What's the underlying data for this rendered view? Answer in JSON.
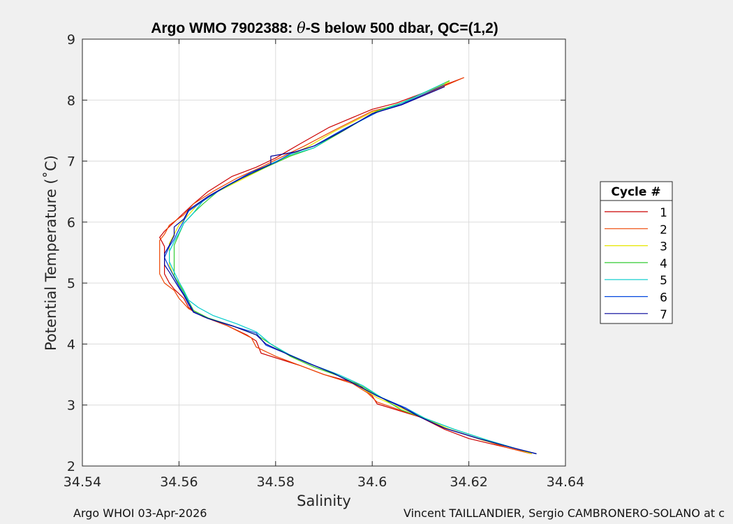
{
  "footer": {
    "left": "Argo WHOI 03-Apr-2026",
    "right": "Vincent TAILLANDIER, Sergio CAMBRONERO-SOLANO at c"
  },
  "colors": {
    "background": "#f0f0f0",
    "axes_bg": "#ffffff",
    "grid": "#dcdcdc"
  },
  "chart_data": {
    "type": "line",
    "title_prefix": "Argo WMO 7902388: ",
    "title_theta": "θ",
    "title_suffix": "-S below 500 dbar,  QC=(1,2)",
    "xlabel": "Salinity",
    "ylabel": "Potential Temperature (˚C)",
    "xlim": [
      34.54,
      34.64
    ],
    "ylim": [
      2,
      9
    ],
    "xticks": [
      34.54,
      34.56,
      34.58,
      34.6,
      34.62,
      34.64
    ],
    "xtick_labels": [
      "34.54",
      "34.56",
      "34.58",
      "34.6",
      "34.62",
      "34.64"
    ],
    "yticks": [
      2,
      3,
      4,
      5,
      6,
      7,
      8,
      9
    ],
    "ytick_labels": [
      "2",
      "3",
      "4",
      "5",
      "6",
      "7",
      "8",
      "9"
    ],
    "grid": true,
    "legend": {
      "title": "Cycle #",
      "placement": "outside-right"
    },
    "series": [
      {
        "name": "1",
        "color": "#cc0000",
        "points": [
          [
            34.619,
            8.37
          ],
          [
            34.605,
            7.95
          ],
          [
            34.6,
            7.85
          ],
          [
            34.591,
            7.55
          ],
          [
            34.585,
            7.28
          ],
          [
            34.58,
            7.05
          ],
          [
            34.576,
            6.9
          ],
          [
            34.571,
            6.75
          ],
          [
            34.566,
            6.5
          ],
          [
            34.563,
            6.3
          ],
          [
            34.561,
            6.15
          ],
          [
            34.559,
            6.0
          ],
          [
            34.557,
            5.85
          ],
          [
            34.556,
            5.75
          ],
          [
            34.557,
            5.6
          ],
          [
            34.557,
            5.35
          ],
          [
            34.557,
            5.15
          ],
          [
            34.558,
            5.0
          ],
          [
            34.559,
            4.9
          ],
          [
            34.561,
            4.75
          ],
          [
            34.562,
            4.6
          ],
          [
            34.565,
            4.45
          ],
          [
            34.57,
            4.3
          ],
          [
            34.574,
            4.15
          ],
          [
            34.576,
            4.05
          ],
          [
            34.577,
            3.85
          ],
          [
            34.585,
            3.65
          ],
          [
            34.59,
            3.5
          ],
          [
            34.597,
            3.35
          ],
          [
            34.6,
            3.15
          ],
          [
            34.601,
            3.02
          ],
          [
            34.61,
            2.8
          ],
          [
            34.615,
            2.6
          ],
          [
            34.62,
            2.45
          ],
          [
            34.628,
            2.3
          ],
          [
            34.633,
            2.2
          ]
        ]
      },
      {
        "name": "2",
        "color": "#ee4400",
        "points": [
          [
            34.619,
            8.37
          ],
          [
            34.606,
            7.93
          ],
          [
            34.6,
            7.82
          ],
          [
            34.592,
            7.5
          ],
          [
            34.586,
            7.25
          ],
          [
            34.58,
            7.02
          ],
          [
            34.577,
            6.9
          ],
          [
            34.572,
            6.72
          ],
          [
            34.567,
            6.5
          ],
          [
            34.563,
            6.3
          ],
          [
            34.561,
            6.12
          ],
          [
            34.558,
            5.95
          ],
          [
            34.557,
            5.8
          ],
          [
            34.556,
            5.7
          ],
          [
            34.556,
            5.55
          ],
          [
            34.556,
            5.3
          ],
          [
            34.556,
            5.15
          ],
          [
            34.557,
            5.0
          ],
          [
            34.559,
            4.88
          ],
          [
            34.56,
            4.75
          ],
          [
            34.562,
            4.58
          ],
          [
            34.565,
            4.45
          ],
          [
            34.57,
            4.3
          ],
          [
            34.575,
            4.1
          ],
          [
            34.576,
            3.95
          ],
          [
            34.58,
            3.8
          ],
          [
            34.586,
            3.62
          ],
          [
            34.59,
            3.5
          ],
          [
            34.596,
            3.35
          ],
          [
            34.599,
            3.2
          ],
          [
            34.601,
            3.05
          ],
          [
            34.61,
            2.8
          ],
          [
            34.616,
            2.6
          ],
          [
            34.622,
            2.45
          ],
          [
            34.628,
            2.3
          ],
          [
            34.633,
            2.2
          ]
        ]
      },
      {
        "name": "3",
        "color": "#e6e600",
        "points": [
          [
            34.616,
            8.3
          ],
          [
            34.605,
            7.92
          ],
          [
            34.6,
            7.8
          ],
          [
            34.592,
            7.48
          ],
          [
            34.587,
            7.25
          ],
          [
            34.582,
            7.05
          ],
          [
            34.578,
            6.9
          ],
          [
            34.573,
            6.7
          ],
          [
            34.568,
            6.5
          ],
          [
            34.564,
            6.3
          ],
          [
            34.562,
            6.12
          ],
          [
            34.56,
            5.95
          ],
          [
            34.559,
            5.8
          ],
          [
            34.558,
            5.65
          ],
          [
            34.558,
            5.5
          ],
          [
            34.558,
            5.3
          ],
          [
            34.559,
            5.1
          ],
          [
            34.56,
            5.0
          ],
          [
            34.561,
            4.85
          ],
          [
            34.562,
            4.7
          ],
          [
            34.563,
            4.55
          ],
          [
            34.566,
            4.42
          ],
          [
            34.571,
            4.3
          ],
          [
            34.576,
            4.15
          ],
          [
            34.579,
            4.0
          ],
          [
            34.583,
            3.8
          ],
          [
            34.588,
            3.62
          ],
          [
            34.593,
            3.48
          ],
          [
            34.597,
            3.32
          ],
          [
            34.601,
            3.12
          ],
          [
            34.606,
            2.95
          ],
          [
            34.611,
            2.78
          ],
          [
            34.616,
            2.6
          ],
          [
            34.623,
            2.42
          ],
          [
            34.63,
            2.28
          ],
          [
            34.633,
            2.2
          ]
        ]
      },
      {
        "name": "4",
        "color": "#33cc33",
        "points": [
          [
            34.616,
            8.32
          ],
          [
            34.607,
            7.98
          ],
          [
            34.601,
            7.82
          ],
          [
            34.593,
            7.45
          ],
          [
            34.588,
            7.22
          ],
          [
            34.583,
            7.08
          ],
          [
            34.578,
            6.9
          ],
          [
            34.573,
            6.72
          ],
          [
            34.568,
            6.5
          ],
          [
            34.565,
            6.3
          ],
          [
            34.563,
            6.15
          ],
          [
            34.561,
            5.98
          ],
          [
            34.56,
            5.8
          ],
          [
            34.559,
            5.62
          ],
          [
            34.559,
            5.45
          ],
          [
            34.559,
            5.28
          ],
          [
            34.559,
            5.12
          ],
          [
            34.56,
            4.98
          ],
          [
            34.561,
            4.85
          ],
          [
            34.562,
            4.7
          ],
          [
            34.563,
            4.55
          ],
          [
            34.566,
            4.43
          ],
          [
            34.571,
            4.3
          ],
          [
            34.576,
            4.15
          ],
          [
            34.579,
            4.0
          ],
          [
            34.583,
            3.8
          ],
          [
            34.588,
            3.62
          ],
          [
            34.593,
            3.48
          ],
          [
            34.598,
            3.3
          ],
          [
            34.602,
            3.12
          ],
          [
            34.606,
            2.92
          ],
          [
            34.611,
            2.78
          ],
          [
            34.617,
            2.6
          ],
          [
            34.624,
            2.42
          ],
          [
            34.63,
            2.28
          ],
          [
            34.634,
            2.2
          ]
        ]
      },
      {
        "name": "5",
        "color": "#00cccc",
        "points": [
          [
            34.615,
            8.28
          ],
          [
            34.606,
            7.95
          ],
          [
            34.601,
            7.8
          ],
          [
            34.593,
            7.47
          ],
          [
            34.588,
            7.22
          ],
          [
            34.583,
            7.1
          ],
          [
            34.578,
            6.92
          ],
          [
            34.573,
            6.72
          ],
          [
            34.569,
            6.55
          ],
          [
            34.565,
            6.35
          ],
          [
            34.563,
            6.15
          ],
          [
            34.561,
            5.98
          ],
          [
            34.56,
            5.82
          ],
          [
            34.559,
            5.68
          ],
          [
            34.558,
            5.52
          ],
          [
            34.558,
            5.35
          ],
          [
            34.559,
            5.18
          ],
          [
            34.56,
            5.02
          ],
          [
            34.561,
            4.88
          ],
          [
            34.562,
            4.72
          ],
          [
            34.564,
            4.6
          ],
          [
            34.567,
            4.47
          ],
          [
            34.572,
            4.33
          ],
          [
            34.576,
            4.2
          ],
          [
            34.579,
            4.0
          ],
          [
            34.583,
            3.82
          ],
          [
            34.588,
            3.65
          ],
          [
            34.593,
            3.5
          ],
          [
            34.598,
            3.32
          ],
          [
            34.602,
            3.12
          ],
          [
            34.607,
            2.95
          ],
          [
            34.611,
            2.78
          ],
          [
            34.617,
            2.6
          ],
          [
            34.624,
            2.42
          ],
          [
            34.63,
            2.28
          ],
          [
            34.634,
            2.2
          ]
        ]
      },
      {
        "name": "6",
        "color": "#0044dd",
        "points": [
          [
            34.615,
            8.25
          ],
          [
            34.606,
            7.93
          ],
          [
            34.601,
            7.8
          ],
          [
            34.594,
            7.52
          ],
          [
            34.588,
            7.25
          ],
          [
            34.583,
            7.12
          ],
          [
            34.58,
            6.98
          ],
          [
            34.575,
            6.82
          ],
          [
            34.57,
            6.6
          ],
          [
            34.566,
            6.4
          ],
          [
            34.562,
            6.18
          ],
          [
            34.561,
            6.02
          ],
          [
            34.56,
            5.88
          ],
          [
            34.559,
            5.72
          ],
          [
            34.558,
            5.6
          ],
          [
            34.557,
            5.42
          ],
          [
            34.558,
            5.25
          ],
          [
            34.559,
            5.1
          ],
          [
            34.56,
            4.95
          ],
          [
            34.561,
            4.82
          ],
          [
            34.562,
            4.68
          ],
          [
            34.563,
            4.53
          ],
          [
            34.566,
            4.42
          ],
          [
            34.57,
            4.32
          ],
          [
            34.576,
            4.18
          ],
          [
            34.578,
            3.98
          ],
          [
            34.582,
            3.85
          ],
          [
            34.587,
            3.68
          ],
          [
            34.592,
            3.52
          ],
          [
            34.597,
            3.32
          ],
          [
            34.601,
            3.15
          ],
          [
            34.607,
            2.95
          ],
          [
            34.61,
            2.8
          ],
          [
            34.615,
            2.62
          ],
          [
            34.622,
            2.45
          ],
          [
            34.629,
            2.3
          ],
          [
            34.634,
            2.2
          ]
        ]
      },
      {
        "name": "7",
        "color": "#000099",
        "points": [
          [
            34.615,
            8.22
          ],
          [
            34.606,
            7.92
          ],
          [
            34.6,
            7.78
          ],
          [
            34.594,
            7.5
          ],
          [
            34.588,
            7.25
          ],
          [
            34.584,
            7.15
          ],
          [
            34.579,
            7.08
          ],
          [
            34.579,
            6.95
          ],
          [
            34.575,
            6.8
          ],
          [
            34.57,
            6.6
          ],
          [
            34.566,
            6.42
          ],
          [
            34.562,
            6.2
          ],
          [
            34.561,
            6.05
          ],
          [
            34.559,
            5.92
          ],
          [
            34.559,
            5.78
          ],
          [
            34.558,
            5.62
          ],
          [
            34.557,
            5.48
          ],
          [
            34.557,
            5.3
          ],
          [
            34.558,
            5.18
          ],
          [
            34.559,
            5.05
          ],
          [
            34.56,
            4.92
          ],
          [
            34.561,
            4.8
          ],
          [
            34.562,
            4.65
          ],
          [
            34.563,
            4.52
          ],
          [
            34.566,
            4.42
          ],
          [
            34.571,
            4.3
          ],
          [
            34.576,
            4.15
          ],
          [
            34.578,
            4.0
          ],
          [
            34.582,
            3.85
          ],
          [
            34.587,
            3.68
          ],
          [
            34.592,
            3.52
          ],
          [
            34.597,
            3.32
          ],
          [
            34.601,
            3.15
          ],
          [
            34.606,
            2.97
          ],
          [
            34.61,
            2.8
          ],
          [
            34.615,
            2.62
          ],
          [
            34.622,
            2.45
          ],
          [
            34.629,
            2.3
          ],
          [
            34.634,
            2.2
          ]
        ]
      }
    ]
  }
}
